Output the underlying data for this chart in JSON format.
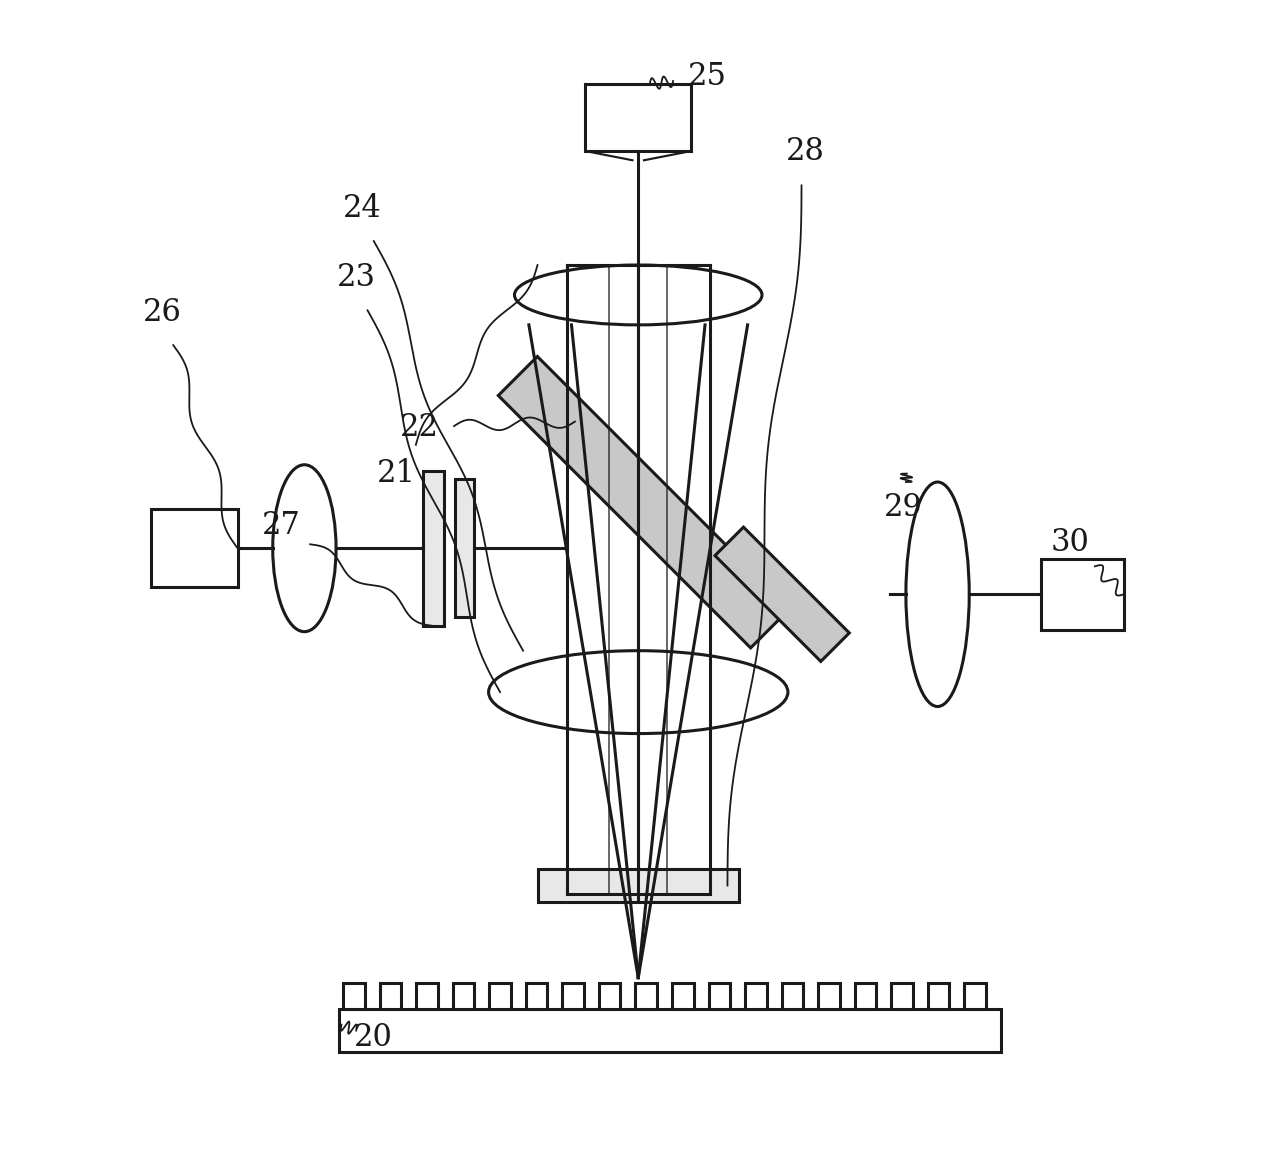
{
  "bg_color": "#ffffff",
  "line_color": "#1a1a1a",
  "line_width": 2.2,
  "label_fontsize": 22,
  "lw_thin": 1.5
}
